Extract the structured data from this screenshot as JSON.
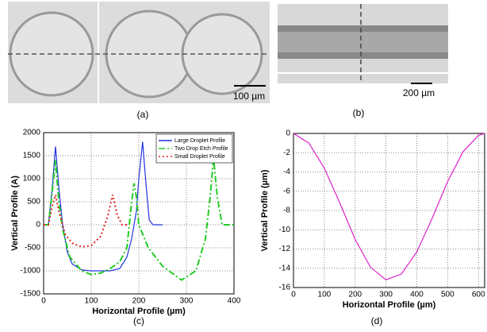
{
  "figure": {
    "labels": [
      "(a)",
      "(b)",
      "(c)",
      "(d)"
    ],
    "scale_a": "100 µm",
    "scale_b": "200 µm"
  },
  "chart_data": [
    {
      "type": "line",
      "xlabel": "Horizontal Profile (µm)",
      "ylabel": "Vertical Profile (A)",
      "xlim": [
        0,
        400
      ],
      "xticks": [
        0,
        100,
        200,
        300,
        400
      ],
      "ylim": [
        -1500,
        2000
      ],
      "yticks": [
        -1500,
        -1000,
        -500,
        0,
        500,
        1000,
        1500,
        2000
      ],
      "grid": true,
      "legend": "upper right",
      "series": [
        {
          "name": "Large Droplet Profile",
          "color": "#2233dd",
          "style": "solid",
          "x": [
            10,
            18,
            25,
            32,
            40,
            50,
            60,
            80,
            100,
            120,
            140,
            160,
            175,
            185,
            195,
            200,
            208,
            215,
            222,
            230,
            250
          ],
          "values": [
            0,
            800,
            1700,
            800,
            0,
            -600,
            -850,
            -980,
            -1000,
            -1000,
            -1000,
            -950,
            -700,
            -300,
            300,
            1000,
            1800,
            900,
            100,
            0,
            0
          ]
        },
        {
          "name": "Two Drop Etch Profile",
          "color": "#22cc22",
          "style": "dashdot",
          "x": [
            0,
            10,
            18,
            25,
            32,
            40,
            55,
            80,
            100,
            120,
            140,
            160,
            175,
            185,
            190,
            195,
            200,
            220,
            250,
            290,
            320,
            340,
            350,
            357,
            365,
            375,
            400
          ],
          "values": [
            0,
            0,
            700,
            1400,
            500,
            -100,
            -700,
            -1000,
            -1080,
            -1050,
            -950,
            -800,
            -500,
            500,
            900,
            600,
            0,
            -500,
            -900,
            -1200,
            -1000,
            -300,
            600,
            1450,
            600,
            0,
            0
          ]
        },
        {
          "name": "Small Droplet Profile",
          "color": "#dd2222",
          "style": "dotted",
          "x": [
            0,
            10,
            18,
            25,
            32,
            45,
            60,
            80,
            100,
            120,
            135,
            145,
            155,
            165,
            175
          ],
          "values": [
            0,
            0,
            400,
            650,
            300,
            -200,
            -400,
            -480,
            -450,
            -250,
            200,
            650,
            200,
            0,
            0
          ]
        }
      ]
    },
    {
      "type": "line",
      "xlabel": "Horizontal Profile (µm)",
      "ylabel": "Vertical Profile (µm)",
      "xlim": [
        0,
        620
      ],
      "xticks": [
        0,
        100,
        200,
        300,
        400,
        500,
        600
      ],
      "ylim": [
        -16,
        0
      ],
      "yticks": [
        -16,
        -14,
        -12,
        -10,
        -8,
        -6,
        -4,
        -2,
        0
      ],
      "grid": true,
      "series": [
        {
          "color": "#dd22cc",
          "style": "solid",
          "x": [
            0,
            50,
            100,
            150,
            200,
            250,
            300,
            350,
            400,
            450,
            500,
            550,
            600,
            620
          ],
          "values": [
            0,
            -1.0,
            -3.6,
            -7.2,
            -11.0,
            -13.9,
            -15.2,
            -14.6,
            -12.3,
            -8.8,
            -5.0,
            -1.9,
            -0.2,
            0
          ]
        }
      ]
    }
  ]
}
